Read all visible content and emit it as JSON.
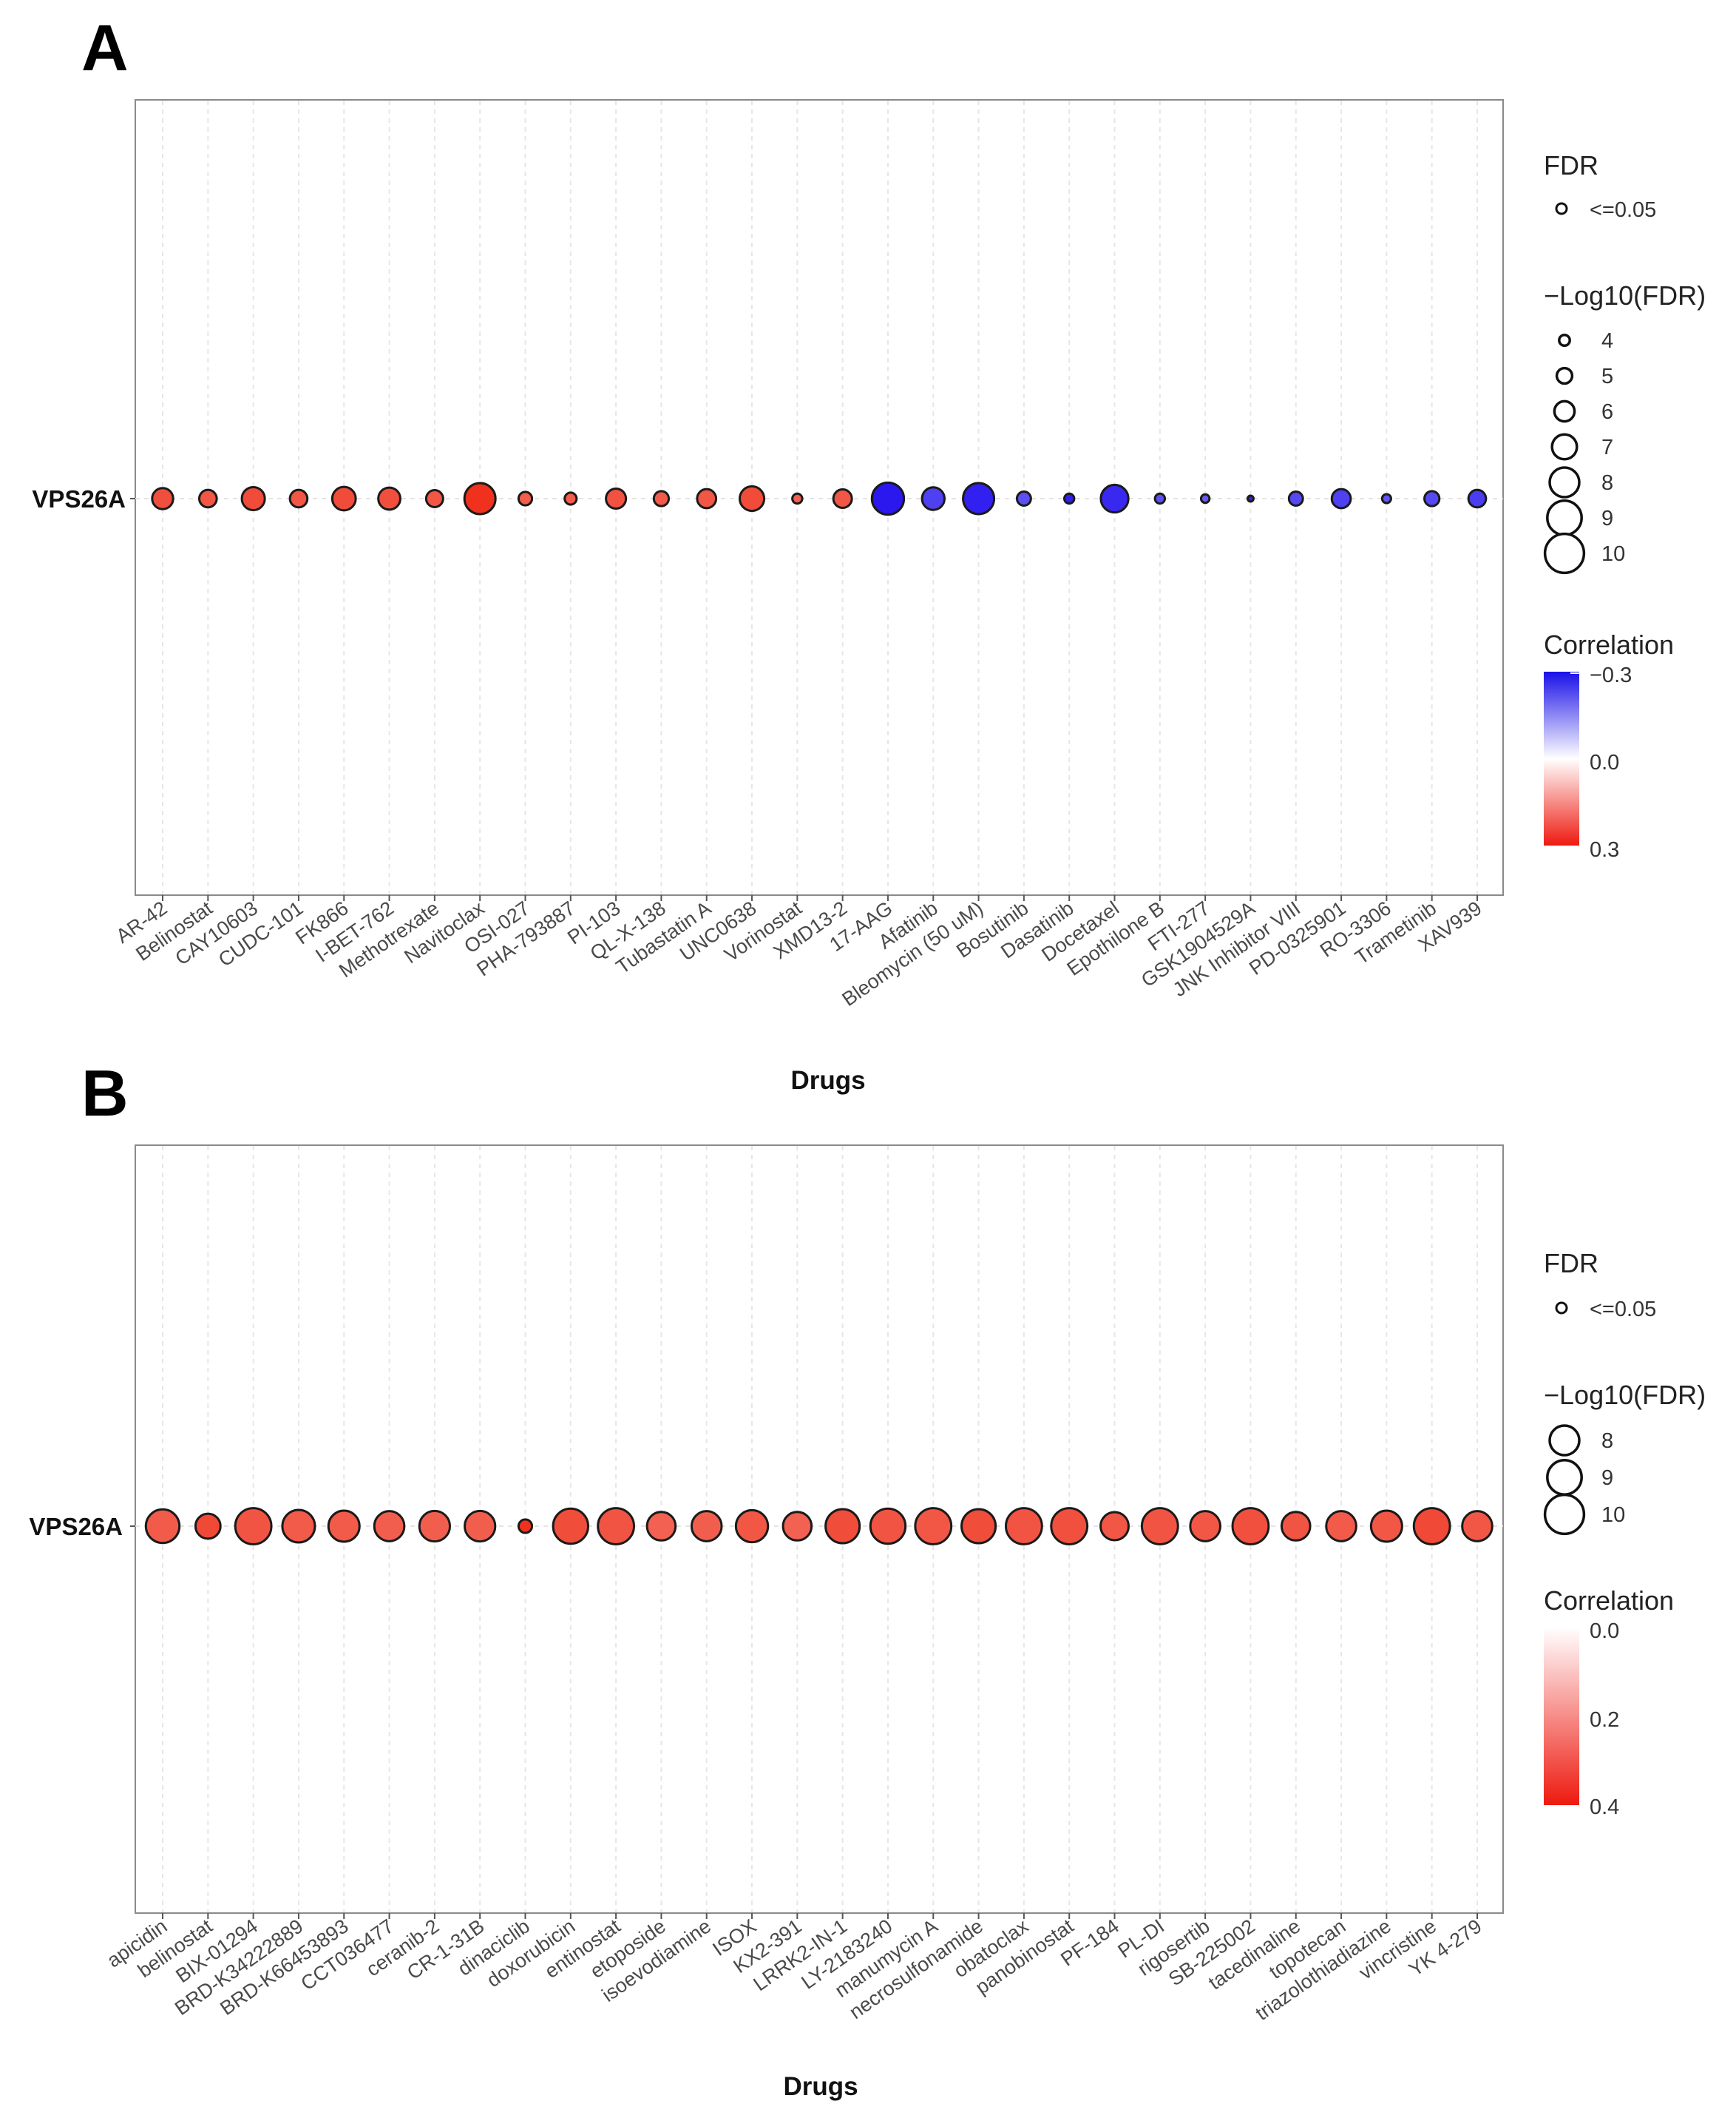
{
  "chart_data": [
    {
      "panel": "A",
      "type": "scatter",
      "gene": "VPS26A",
      "xlabel": "Drugs",
      "categories": [
        "AR-42",
        "Belinostat",
        "CAY10603",
        "CUDC-101",
        "FK866",
        "I-BET-762",
        "Methotrexate",
        "Navitoclax",
        "OSI-027",
        "PHA-793887",
        "PI-103",
        "QL-X-138",
        "Tubastatin A",
        "UNC0638",
        "Vorinostat",
        "XMD13-2",
        "17-AAG",
        "Afatinib",
        "Bleomycin (50 uM)",
        "Bosutinib",
        "Dasatinib",
        "Docetaxel",
        "Epothilone B",
        "FTI-277",
        "GSK1904529A",
        "JNK Inhibitor VIII",
        "PD-0325901",
        "RO-3306",
        "Trametinib",
        "XAV939"
      ],
      "correlation": [
        0.22,
        0.2,
        0.23,
        0.2,
        0.23,
        0.22,
        0.2,
        0.3,
        0.18,
        0.18,
        0.21,
        0.19,
        0.2,
        0.23,
        0.17,
        0.2,
        -0.32,
        -0.22,
        -0.3,
        -0.18,
        -0.3,
        -0.28,
        -0.18,
        -0.15,
        -0.3,
        -0.2,
        -0.22,
        -0.17,
        -0.2,
        -0.23
      ],
      "neg_log10_fdr": [
        7.0,
        6.3,
        7.4,
        6.3,
        7.5,
        7.2,
        6.2,
        9.0,
        5.5,
        5.2,
        6.8,
        5.8,
        6.6,
        7.7,
        4.8,
        6.5,
        9.2,
        7.3,
        9.0,
        5.6,
        4.8,
        8.3,
        4.8,
        4.5,
        4.0,
        5.6,
        6.6,
        4.6,
        5.8,
        6.3
      ],
      "fdr_legend": {
        "title": "FDR",
        "label": "<=0.05"
      },
      "size_legend": {
        "title": "−Log10(FDR)",
        "values": [
          4,
          5,
          6,
          7,
          8,
          9,
          10
        ]
      },
      "color_legend": {
        "title": "Correlation",
        "labels": [
          "−0.3",
          "0.0",
          "0.3"
        ],
        "colors": [
          "#1a10e8",
          "#ffffff",
          "#ee1a10"
        ]
      }
    },
    {
      "panel": "B",
      "type": "scatter",
      "gene": "VPS26A",
      "xlabel": "Drugs",
      "categories": [
        "apicidin",
        "belinostat",
        "BIX-01294",
        "BRD-K34222889",
        "BRD-K66453893",
        "CCT036477",
        "ceranib-2",
        "CR-1-31B",
        "dinaciclib",
        "doxorubicin",
        "entinostat",
        "etoposide",
        "isoevodiamine",
        "ISOX",
        "KX2-391",
        "LRRK2-IN-1",
        "LY-2183240",
        "manumycin A",
        "necrosulfonamide",
        "obatoclax",
        "panobinostat",
        "PF-184",
        "PL-DI",
        "rigosertib",
        "SB-225002",
        "tacedinaline",
        "topotecan",
        "triazolothiadiazine",
        "vincristine",
        "YK 4-279"
      ],
      "correlation": [
        0.26,
        0.31,
        0.28,
        0.26,
        0.26,
        0.25,
        0.25,
        0.25,
        0.38,
        0.3,
        0.28,
        0.24,
        0.25,
        0.27,
        0.24,
        0.3,
        0.28,
        0.27,
        0.3,
        0.28,
        0.29,
        0.27,
        0.28,
        0.27,
        0.29,
        0.28,
        0.26,
        0.27,
        0.31,
        0.27
      ],
      "neg_log10_fdr": [
        9.5,
        7.8,
        10.0,
        9.3,
        9.0,
        8.8,
        8.9,
        8.9,
        5.5,
        9.8,
        10.0,
        8.5,
        8.8,
        9.2,
        8.5,
        9.6,
        9.8,
        10.0,
        9.6,
        10.0,
        10.0,
        8.4,
        10.0,
        8.8,
        10.0,
        8.5,
        8.8,
        9.0,
        10.0,
        8.8
      ],
      "fdr_legend": {
        "title": "FDR",
        "label": "<=0.05"
      },
      "size_legend": {
        "title": "−Log10(FDR)",
        "values": [
          8,
          9,
          10
        ]
      },
      "color_legend": {
        "title": "Correlation",
        "labels": [
          "0.0",
          "0.2",
          "0.4"
        ],
        "colors": [
          "#ffffff",
          "#f07a62",
          "#ee1a10"
        ]
      }
    }
  ]
}
